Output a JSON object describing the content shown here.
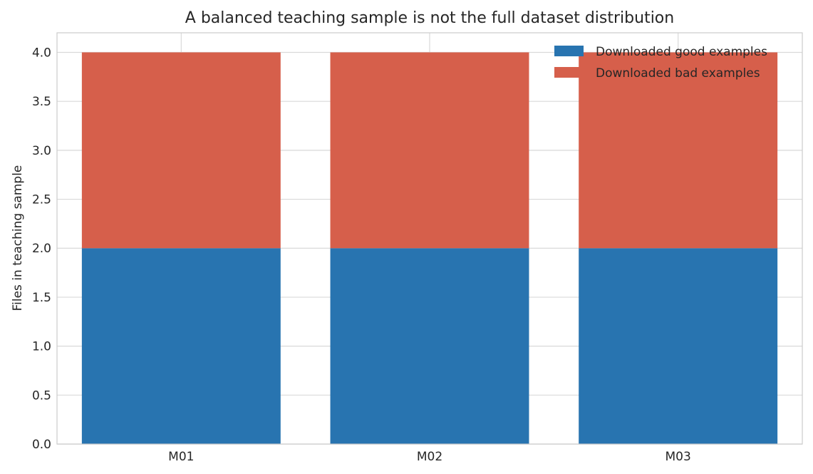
{
  "chart_data": {
    "type": "bar",
    "stacked": true,
    "title": "A balanced teaching sample is not the full dataset distribution",
    "xlabel": "",
    "ylabel": "Files in teaching sample",
    "categories": [
      "M01",
      "M02",
      "M03"
    ],
    "series": [
      {
        "name": "Downloaded good examples",
        "values": [
          2,
          2,
          2
        ],
        "color": "#2874b0"
      },
      {
        "name": "Downloaded bad examples",
        "values": [
          2,
          2,
          2
        ],
        "color": "#d65f4b"
      }
    ],
    "ylim": [
      0,
      4.2
    ],
    "yticks": [
      "0.0",
      "0.5",
      "1.0",
      "1.5",
      "2.0",
      "2.5",
      "3.0",
      "3.5",
      "4.0"
    ],
    "grid": true,
    "legend_position": "top-right"
  }
}
